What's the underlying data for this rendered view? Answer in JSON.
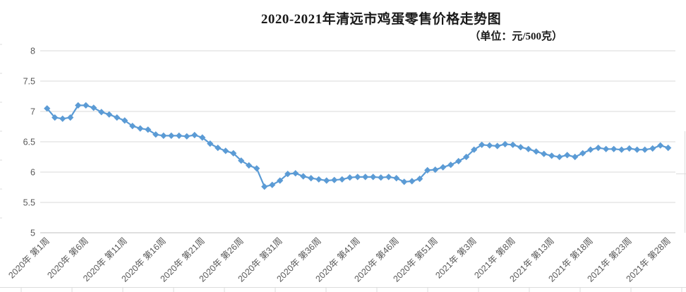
{
  "chart_data": {
    "type": "line",
    "title": "2020-2021年清远市鸡蛋零售价格走势图",
    "unit_label": "（单位：元/500克）",
    "xlabel": "",
    "ylabel": "",
    "ylim": [
      5,
      8
    ],
    "y_ticks": [
      5,
      5.5,
      6,
      6.5,
      7,
      7.5,
      8
    ],
    "grid": true,
    "legend": "none",
    "marker": "diamond",
    "x_tick_every": 5,
    "x_tick_labels": [
      "2020年 第1周",
      "2020年 第6周",
      "2020年 第11周",
      "2020年 第16周",
      "2020年 第21周",
      "2020年 第26周",
      "2020年 第31周",
      "2020年 第36周",
      "2020年 第41周",
      "2020年 第46周",
      "2020年 第51周",
      "2021年 第3周",
      "2021年 第8周",
      "2021年 第13周",
      "2021年 第18周",
      "2021年 第23周",
      "2021年 第28周"
    ],
    "weeks": [
      "2020年第1周",
      "2020年第2周",
      "2020年第3周",
      "2020年第4周",
      "2020年第5周",
      "2020年第6周",
      "2020年第7周",
      "2020年第8周",
      "2020年第9周",
      "2020年第10周",
      "2020年第11周",
      "2020年第12周",
      "2020年第13周",
      "2020年第14周",
      "2020年第15周",
      "2020年第16周",
      "2020年第17周",
      "2020年第18周",
      "2020年第19周",
      "2020年第20周",
      "2020年第21周",
      "2020年第22周",
      "2020年第23周",
      "2020年第24周",
      "2020年第25周",
      "2020年第26周",
      "2020年第27周",
      "2020年第28周",
      "2020年第29周",
      "2020年第30周",
      "2020年第31周",
      "2020年第32周",
      "2020年第33周",
      "2020年第34周",
      "2020年第35周",
      "2020年第36周",
      "2020年第37周",
      "2020年第38周",
      "2020年第39周",
      "2020年第40周",
      "2020年第41周",
      "2020年第42周",
      "2020年第43周",
      "2020年第44周",
      "2020年第45周",
      "2020年第46周",
      "2020年第47周",
      "2020年第48周",
      "2020年第49周",
      "2020年第50周",
      "2020年第51周",
      "2020年第52周",
      "2020年第53周",
      "2021年第1周",
      "2021年第2周",
      "2021年第3周",
      "2021年第4周",
      "2021年第5周",
      "2021年第6周",
      "2021年第7周",
      "2021年第8周",
      "2021年第9周",
      "2021年第10周",
      "2021年第11周",
      "2021年第12周",
      "2021年第13周",
      "2021年第14周",
      "2021年第15周",
      "2021年第16周",
      "2021年第17周",
      "2021年第18周",
      "2021年第19周",
      "2021年第20周",
      "2021年第21周",
      "2021年第22周",
      "2021年第23周",
      "2021年第24周",
      "2021年第25周",
      "2021年第26周",
      "2021年第27周",
      "2021年第28周"
    ],
    "values": [
      7.05,
      6.9,
      6.88,
      6.9,
      7.1,
      7.1,
      7.06,
      6.99,
      6.95,
      6.9,
      6.85,
      6.76,
      6.72,
      6.7,
      6.62,
      6.6,
      6.6,
      6.6,
      6.59,
      6.61,
      6.57,
      6.47,
      6.4,
      6.35,
      6.31,
      6.19,
      6.11,
      6.06,
      5.76,
      5.79,
      5.86,
      5.97,
      5.98,
      5.93,
      5.9,
      5.88,
      5.86,
      5.87,
      5.88,
      5.91,
      5.92,
      5.92,
      5.92,
      5.91,
      5.92,
      5.9,
      5.84,
      5.85,
      5.89,
      6.03,
      6.04,
      6.08,
      6.12,
      6.18,
      6.25,
      6.37,
      6.45,
      6.44,
      6.43,
      6.46,
      6.45,
      6.41,
      6.38,
      6.34,
      6.3,
      6.27,
      6.25,
      6.28,
      6.25,
      6.31,
      6.37,
      6.4,
      6.38,
      6.38,
      6.37,
      6.39,
      6.37,
      6.37,
      6.39,
      6.44,
      6.4
    ],
    "colors": {
      "line": "#5b9bd5",
      "grid": "#d9d9d9",
      "axis": "#bfbfbf",
      "tick_text": "#595959",
      "title_text": "#1a1a1a",
      "sheet_line": "#dcdcdc"
    }
  }
}
